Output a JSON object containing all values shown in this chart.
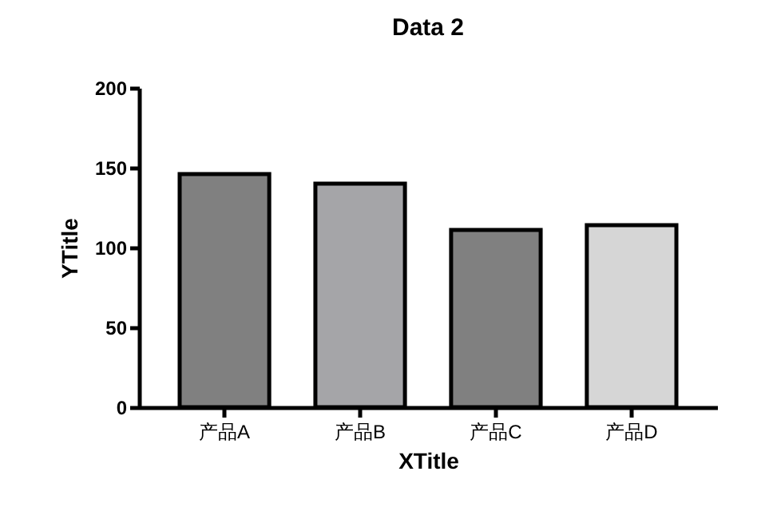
{
  "chart_data": {
    "type": "bar",
    "title": "Data 2",
    "xlabel": "XTitle",
    "ylabel": "YTitle",
    "categories": [
      "产品A",
      "产品B",
      "产品C",
      "产品D"
    ],
    "values": [
      146,
      140,
      111,
      114
    ],
    "colors": [
      "#808080",
      "#a5a5a8",
      "#808080",
      "#d6d6d6"
    ],
    "ylim": [
      0,
      200
    ],
    "yticks": [
      0,
      50,
      100,
      150,
      200
    ],
    "grid": false
  }
}
